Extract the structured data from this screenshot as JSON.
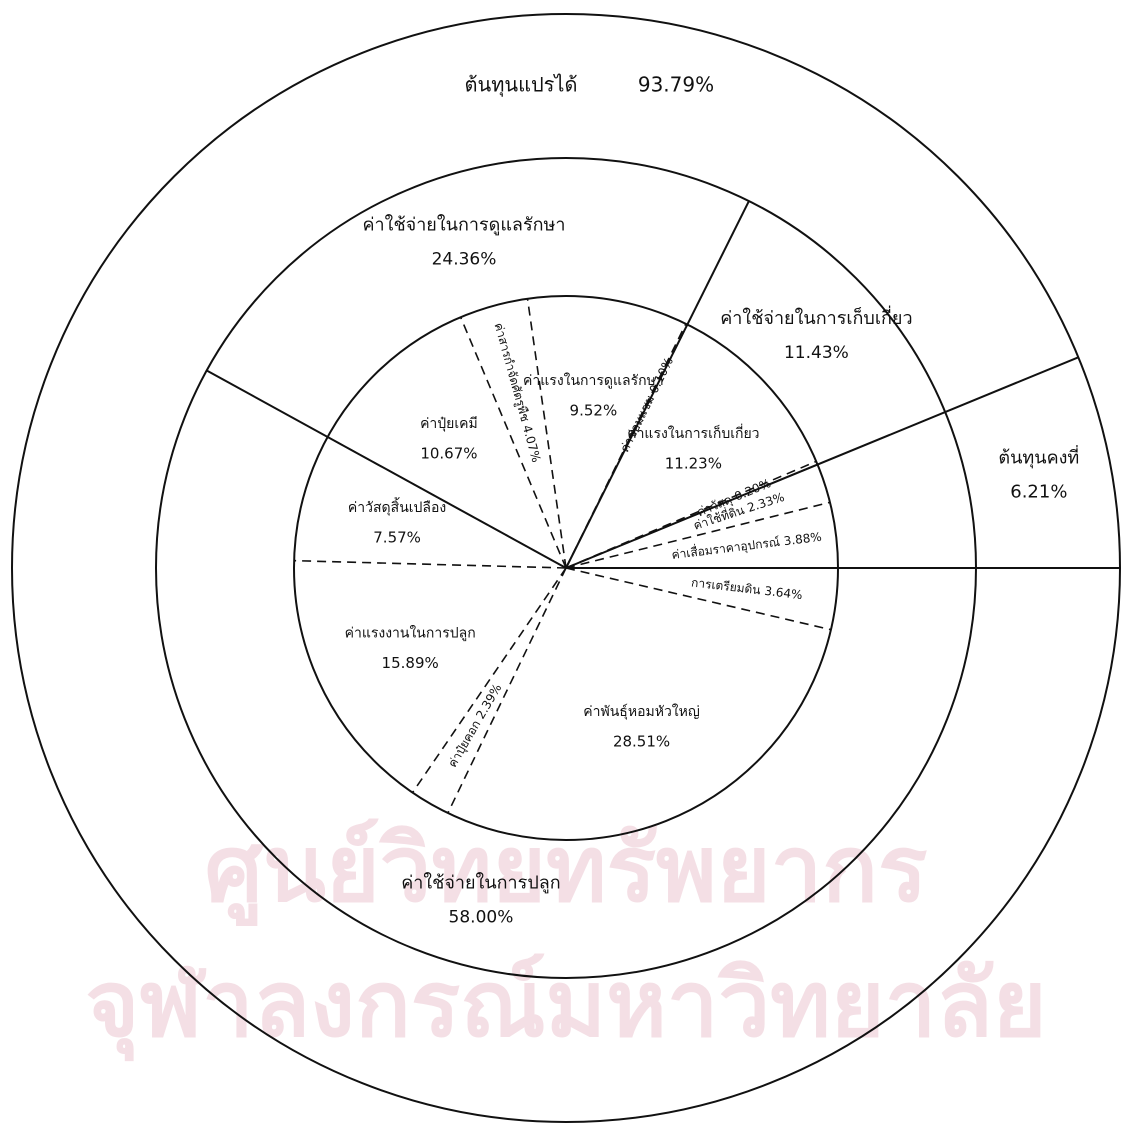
{
  "chart_data": {
    "type": "pie",
    "outer": {
      "categories": [
        "ต้นทุนคงที่",
        "ต้นทุนแปรได้"
      ],
      "values": [
        6.21,
        93.79
      ],
      "value_labels": [
        "6.21%",
        "93.79%"
      ]
    },
    "middle": {
      "categories": [
        "ค่าใช้จ่ายในการเก็บเกี่ยว",
        "ค่าใช้จ่ายในการดูแลรักษา",
        "ค่าใช้จ่ายในการปลูก"
      ],
      "values": [
        11.43,
        24.36,
        58.0
      ],
      "value_labels": [
        "11.43%",
        "24.36%",
        "58.00%"
      ]
    },
    "inner": {
      "categories": [
        "ค่าเสื่อมราคาอุปกรณ์",
        "ค่าใช้ที่ดิน",
        "ค่าวัสดุ",
        "ค่าแรงในการเก็บเกี่ยว",
        "ค่าซ่อมแซม",
        "ค่าแรงในการดูแลรักษา",
        "ค่าสารกำจัดศัตรูพืช",
        "ค่าปุ๋ยเคมี",
        "ค่าวัสดุสิ้นเปลือง",
        "ค่าแรงงานในการปลูก",
        "ค่าปุ๋ยคอก",
        "ค่าพันธุ์หอมหัวใหญ่",
        "การเตรียมดิน"
      ],
      "values": [
        3.88,
        2.33,
        0.2,
        11.23,
        0.1,
        9.52,
        4.07,
        10.67,
        7.57,
        15.89,
        2.39,
        28.51,
        3.64
      ],
      "value_labels": [
        "3.88%",
        "2.33%",
        "0.20%",
        "11.23%",
        "0.10%",
        "9.52%",
        "4.07%",
        "10.67%",
        "7.57%",
        "15.89%",
        "2.39%",
        "28.51%",
        "3.64%"
      ]
    },
    "watermark": [
      "ศูนย์วิทยทรัพยากร",
      "จุฬาลงกรณ์มหาวิทยาลัย"
    ]
  }
}
